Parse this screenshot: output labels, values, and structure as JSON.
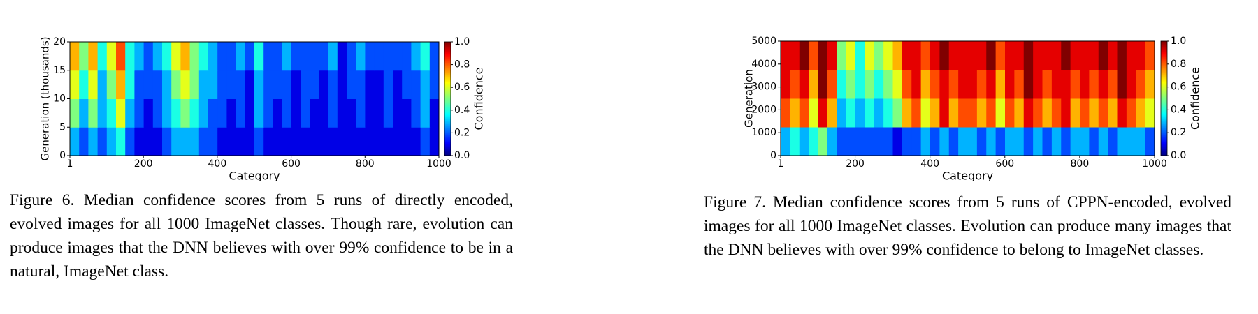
{
  "chart_data": [
    {
      "type": "heatmap",
      "xlabel": "Category",
      "ylabel": "Generation (thousands)",
      "xlim": [
        1,
        1000
      ],
      "xticks": [
        1,
        200,
        400,
        600,
        800,
        1000
      ],
      "ylim": [
        0,
        20
      ],
      "yticks": [
        0,
        5,
        10,
        15,
        20
      ],
      "clim": [
        0,
        1
      ],
      "cticks": [
        {
          "value": 0,
          "label": "0.0"
        },
        0.2,
        0.4,
        0.6,
        0.8,
        {
          "value": 1,
          "label": "1.0"
        }
      ],
      "colorbar_label": "Confidence",
      "colormap": "jet",
      "values": [
        [
          0.3,
          0.2,
          0.3,
          0.2,
          0.3,
          0.4,
          0.2,
          0.1,
          0.1,
          0.1,
          0.2,
          0.3,
          0.3,
          0.3,
          0.2,
          0.2,
          0.1,
          0.1,
          0.1,
          0.1,
          0.2,
          0.1,
          0.1,
          0.1,
          0.1,
          0.1,
          0.1,
          0.1,
          0.1,
          0.1,
          0.1,
          0.1,
          0.1,
          0.1,
          0.1,
          0.1,
          0.1,
          0.1,
          0.2,
          0.1
        ],
        [
          0.5,
          0.3,
          0.5,
          0.3,
          0.4,
          0.6,
          0.3,
          0.2,
          0.1,
          0.2,
          0.3,
          0.4,
          0.5,
          0.4,
          0.3,
          0.2,
          0.2,
          0.1,
          0.2,
          0.1,
          0.3,
          0.2,
          0.1,
          0.2,
          0.1,
          0.2,
          0.1,
          0.1,
          0.2,
          0.1,
          0.1,
          0.2,
          0.1,
          0.1,
          0.2,
          0.1,
          0.1,
          0.2,
          0.3,
          0.1
        ],
        [
          0.6,
          0.4,
          0.6,
          0.3,
          0.5,
          0.7,
          0.4,
          0.2,
          0.2,
          0.2,
          0.3,
          0.5,
          0.6,
          0.5,
          0.3,
          0.3,
          0.2,
          0.2,
          0.2,
          0.1,
          0.3,
          0.2,
          0.2,
          0.2,
          0.1,
          0.2,
          0.2,
          0.1,
          0.2,
          0.1,
          0.2,
          0.2,
          0.1,
          0.1,
          0.2,
          0.1,
          0.2,
          0.2,
          0.3,
          0.2
        ],
        [
          0.7,
          0.5,
          0.7,
          0.4,
          0.6,
          0.8,
          0.4,
          0.3,
          0.2,
          0.3,
          0.4,
          0.6,
          0.7,
          0.5,
          0.4,
          0.3,
          0.2,
          0.2,
          0.3,
          0.2,
          0.4,
          0.2,
          0.2,
          0.3,
          0.2,
          0.2,
          0.2,
          0.2,
          0.3,
          0.1,
          0.2,
          0.3,
          0.2,
          0.2,
          0.2,
          0.2,
          0.2,
          0.3,
          0.4,
          0.2
        ]
      ]
    },
    {
      "type": "heatmap",
      "xlabel": "Category",
      "ylabel": "Generation",
      "xlim": [
        1,
        1000
      ],
      "xticks": [
        1,
        200,
        400,
        600,
        800,
        1000
      ],
      "ylim": [
        0,
        5000
      ],
      "yticks": [
        0,
        1000,
        2000,
        3000,
        4000,
        5000
      ],
      "clim": [
        0,
        1
      ],
      "cticks": [
        {
          "value": 0,
          "label": "0.0"
        },
        0.2,
        0.4,
        0.6,
        0.8,
        {
          "value": 1,
          "label": "1.0"
        }
      ],
      "colorbar_label": "Confidence",
      "colormap": "jet",
      "values": [
        [
          0.3,
          0.4,
          0.3,
          0.4,
          0.5,
          0.3,
          0.2,
          0.2,
          0.2,
          0.2,
          0.2,
          0.2,
          0.1,
          0.2,
          0.2,
          0.3,
          0.2,
          0.3,
          0.2,
          0.3,
          0.3,
          0.2,
          0.3,
          0.2,
          0.3,
          0.3,
          0.2,
          0.3,
          0.2,
          0.3,
          0.2,
          0.3,
          0.3,
          0.2,
          0.3,
          0.2,
          0.3,
          0.3,
          0.3,
          0.2
        ],
        [
          0.8,
          0.7,
          0.8,
          0.6,
          0.9,
          0.7,
          0.3,
          0.4,
          0.3,
          0.4,
          0.3,
          0.4,
          0.5,
          0.7,
          0.8,
          0.6,
          0.7,
          0.9,
          0.7,
          0.8,
          0.8,
          0.7,
          0.8,
          0.6,
          0.8,
          0.7,
          0.9,
          0.8,
          0.7,
          0.8,
          0.9,
          0.7,
          0.8,
          0.7,
          0.8,
          0.7,
          0.9,
          0.8,
          0.7,
          0.6
        ],
        [
          0.9,
          0.8,
          0.9,
          0.7,
          1.0,
          0.8,
          0.4,
          0.5,
          0.4,
          0.5,
          0.4,
          0.5,
          0.6,
          0.8,
          0.9,
          0.7,
          0.8,
          0.9,
          0.8,
          0.9,
          0.9,
          0.8,
          0.9,
          0.7,
          0.9,
          0.8,
          1.0,
          0.9,
          0.8,
          0.9,
          0.9,
          0.8,
          0.9,
          0.8,
          0.9,
          0.8,
          1.0,
          0.9,
          0.8,
          0.7
        ],
        [
          0.9,
          0.9,
          1.0,
          0.8,
          1.0,
          0.9,
          0.5,
          0.6,
          0.4,
          0.6,
          0.5,
          0.6,
          0.7,
          0.9,
          0.9,
          0.8,
          0.9,
          1.0,
          0.9,
          0.9,
          0.9,
          0.9,
          1.0,
          0.8,
          0.9,
          0.9,
          1.0,
          0.9,
          0.9,
          0.9,
          1.0,
          0.9,
          0.9,
          0.9,
          1.0,
          0.9,
          1.0,
          0.9,
          0.9,
          0.8
        ]
      ]
    }
  ],
  "captions": [
    "Figure 6. Median confidence scores from 5 runs of directly encoded, evolved images for all 1000 ImageNet classes. Though rare, evolution can produce images that the DNN believes with over 99% confidence to be in a natural, ImageNet class.",
    "Figure 7. Median confidence scores from 5 runs of CPPN-encoded, evolved images for all 1000 ImageNet classes. Evolution can produce many images that the DNN believes with over 99% confidence to belong to ImageNet classes."
  ]
}
